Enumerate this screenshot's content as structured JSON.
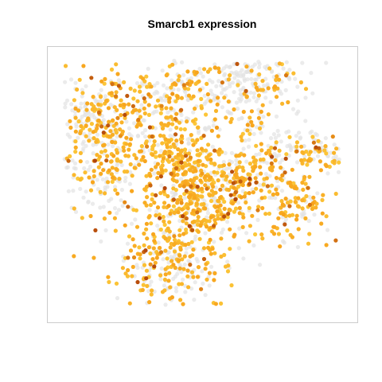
{
  "chart_data": {
    "type": "scatter",
    "title": "Smarcb1 expression",
    "xlabel": "",
    "ylabel": "",
    "xlim": [
      -40,
      40
    ],
    "ylim": [
      -42,
      42
    ],
    "axes_visible": false,
    "grid": false,
    "legend": "none",
    "colors": {
      "background_cells": "#e3e3e3",
      "low_expression": "#fcc83a",
      "mid_expression": "#f7a21b",
      "high_expression": "#b0430a",
      "frame": "#cccccc"
    },
    "clusters": [
      {
        "cx": -25,
        "cy": 15,
        "sx": 7.0,
        "sy": 10.0,
        "n": 320,
        "expr": 0.68
      },
      {
        "cx": -9,
        "cy": 17,
        "sx": 4.5,
        "sy": 7.5,
        "n": 150,
        "expr": 0.72
      },
      {
        "cx": -31,
        "cy": 23,
        "sx": 4.5,
        "sy": 4.0,
        "n": 60,
        "expr": 0.15
      },
      {
        "cx": -4,
        "cy": 2,
        "sx": 4.0,
        "sy": 9.0,
        "n": 140,
        "expr": 0.74
      },
      {
        "cx": -2,
        "cy": -4,
        "sx": 7.0,
        "sy": 7.5,
        "n": 230,
        "expr": 0.8
      },
      {
        "cx": 8,
        "cy": -4,
        "sx": 5.5,
        "sy": 6.0,
        "n": 120,
        "expr": 0.74
      },
      {
        "cx": 15,
        "cy": 6,
        "sx": 7.5,
        "sy": 5.0,
        "n": 140,
        "expr": 0.66
      },
      {
        "cx": 25,
        "cy": -6,
        "sx": 4.5,
        "sy": 6.5,
        "n": 130,
        "expr": 0.72
      },
      {
        "cx": 33,
        "cy": 10,
        "sx": 3.5,
        "sy": 2.5,
        "n": 70,
        "expr": 0.62
      },
      {
        "cx": -9,
        "cy": -24,
        "sx": 8.0,
        "sy": 8.5,
        "n": 260,
        "expr": 0.72
      },
      {
        "cx": -5,
        "cy": 33,
        "sx": 4.5,
        "sy": 4.0,
        "n": 60,
        "expr": 0.58
      },
      {
        "cx": 11,
        "cy": 29,
        "sx": 7.5,
        "sy": 7.0,
        "n": 160,
        "expr": 0.42
      },
      {
        "cx": 10,
        "cy": 33,
        "sx": 8.0,
        "sy": 4.5,
        "n": 110,
        "expr": 0.05
      },
      {
        "cx": -15,
        "cy": 31,
        "sx": 3.5,
        "sy": 3.0,
        "n": 25,
        "expr": 0.4
      },
      {
        "cx": -27,
        "cy": 4,
        "sx": 8.0,
        "sy": 9.0,
        "n": 90,
        "expr": 0.05
      },
      {
        "cx": 27,
        "cy": 14,
        "sx": 5.0,
        "sy": 3.5,
        "n": 40,
        "expr": 0.1
      },
      {
        "cx": -5,
        "cy": -26,
        "sx": 7.0,
        "sy": 5.5,
        "n": 40,
        "expr": 0.12
      }
    ]
  }
}
